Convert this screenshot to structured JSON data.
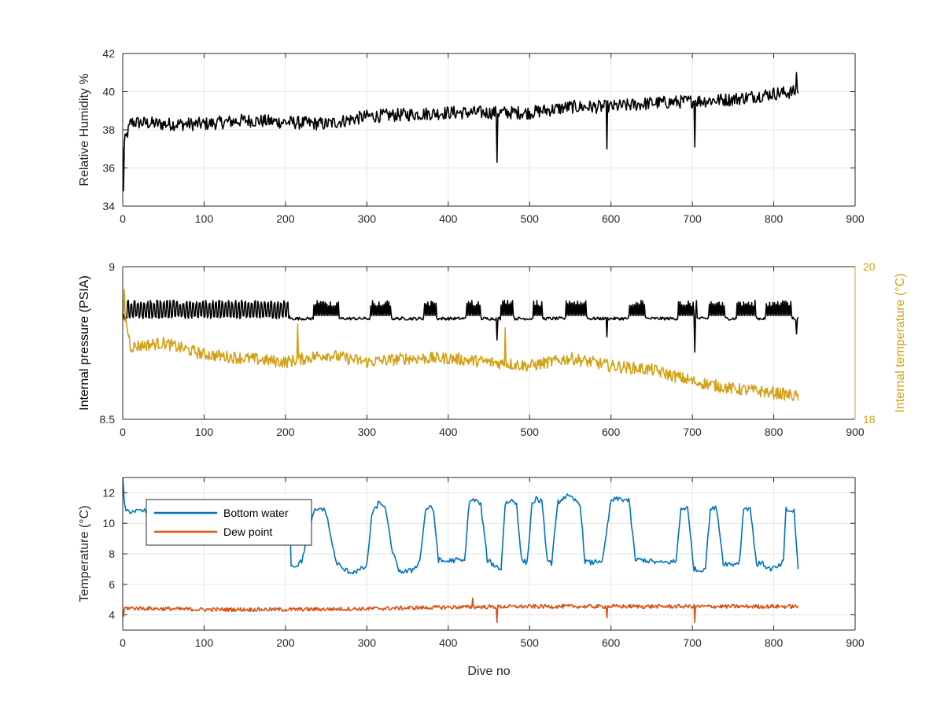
{
  "chart_data": [
    {
      "type": "line",
      "panel": "humidity",
      "xlabel": "",
      "ylabel": "Relative Humidity %",
      "xlim": [
        0,
        900
      ],
      "ylim": [
        34,
        42
      ],
      "xticks": [
        "0",
        "100",
        "200",
        "300",
        "400",
        "500",
        "600",
        "700",
        "800",
        "900"
      ],
      "yticks": [
        "34",
        "36",
        "38",
        "40",
        "42"
      ],
      "grid": true,
      "series": [
        {
          "color": "#000000",
          "baseline_x": [
            0,
            10,
            50,
            100,
            150,
            200,
            250,
            300,
            350,
            400,
            450,
            500,
            550,
            600,
            650,
            700,
            750,
            800,
            830
          ],
          "baseline_y": [
            37.0,
            38.4,
            38.3,
            38.3,
            38.5,
            38.4,
            38.3,
            38.7,
            38.8,
            38.9,
            38.9,
            38.9,
            39.2,
            39.2,
            39.4,
            39.5,
            39.6,
            39.9,
            40.0
          ],
          "noise": 0.35,
          "spikes": [
            {
              "x": 1,
              "y": 34.8
            },
            {
              "x": 460,
              "y": 36.3
            },
            {
              "x": 595,
              "y": 37.0
            },
            {
              "x": 703,
              "y": 37.1
            },
            {
              "x": 828,
              "y": 41.0
            }
          ]
        }
      ]
    },
    {
      "type": "line",
      "panel": "pressure-temperature",
      "xlabel": "",
      "ylabel": "Internal pressure (PSIA)",
      "ylabel_right": "Internal temperature (°C)",
      "xlim": [
        0,
        900
      ],
      "ylim": [
        8.5,
        9
      ],
      "ylim_right": [
        18,
        20
      ],
      "xticks": [
        "0",
        "100",
        "200",
        "300",
        "400",
        "500",
        "600",
        "700",
        "800",
        "900"
      ],
      "yticks": [
        "8.5",
        "9"
      ],
      "yticks_right": [
        "18",
        "20"
      ],
      "right_axis_color": "#D4A017",
      "grid": true,
      "series": [
        {
          "axis": "left",
          "color": "#000000",
          "baseline": 8.83,
          "early_oscillation": {
            "x0": 5,
            "x1": 205,
            "low": 8.83,
            "high": 8.89
          },
          "plateau_top": 8.89,
          "plateaus": [
            [
              235,
              265
            ],
            [
              305,
              330
            ],
            [
              370,
              385
            ],
            [
              422,
              440
            ],
            [
              465,
              480
            ],
            [
              505,
              515
            ],
            [
              545,
              570
            ],
            [
              622,
              642
            ],
            [
              683,
              705
            ],
            [
              720,
              740
            ],
            [
              755,
              778
            ],
            [
              790,
              822
            ]
          ],
          "spikes": [
            {
              "x": 1,
              "y": 8.84
            },
            {
              "x": 460,
              "y": 8.76
            },
            {
              "x": 595,
              "y": 8.77
            },
            {
              "x": 703,
              "y": 8.72
            },
            {
              "x": 828,
              "y": 8.78
            }
          ]
        },
        {
          "axis": "right",
          "color": "#D4A017",
          "baseline_x": [
            0,
            10,
            50,
            100,
            150,
            200,
            250,
            300,
            350,
            400,
            450,
            500,
            550,
            600,
            650,
            700,
            750,
            800,
            830
          ],
          "baseline_y": [
            19.5,
            18.95,
            19.0,
            18.85,
            18.8,
            18.75,
            18.85,
            18.75,
            18.8,
            18.8,
            18.75,
            18.7,
            18.8,
            18.7,
            18.65,
            18.5,
            18.4,
            18.35,
            18.3
          ],
          "noise": 0.08,
          "spikes": [
            {
              "x": 2,
              "y": 19.7
            },
            {
              "x": 215,
              "y": 19.25
            },
            {
              "x": 470,
              "y": 19.2
            },
            {
              "x": 705,
              "y": 18.45
            },
            {
              "x": 795,
              "y": 18.35
            }
          ]
        }
      ]
    },
    {
      "type": "line",
      "panel": "bottom-temperatures",
      "xlabel": "Dive no",
      "ylabel": "Temperature (°C)",
      "xlim": [
        0,
        900
      ],
      "ylim": [
        3,
        13
      ],
      "xticks": [
        "0",
        "100",
        "200",
        "300",
        "400",
        "500",
        "600",
        "700",
        "800",
        "900"
      ],
      "yticks": [
        "4",
        "6",
        "8",
        "10",
        "12"
      ],
      "grid": true,
      "legend": {
        "position": "top-left",
        "entries": [
          {
            "name": "Bottom water",
            "color": "#0072BD"
          },
          {
            "name": "Dew point",
            "color": "#D95319"
          }
        ]
      },
      "series": [
        {
          "name": "Bottom water",
          "color": "#0072BD",
          "x": [
            0,
            2,
            4,
            6,
            30,
            205,
            207,
            212,
            220,
            228,
            236,
            244,
            250,
            258,
            262,
            270,
            280,
            290,
            300,
            306,
            314,
            322,
            330,
            338,
            345,
            355,
            365,
            372,
            376,
            382,
            388,
            395,
            410,
            420,
            426,
            434,
            440,
            448,
            458,
            465,
            470,
            478,
            484,
            490,
            497,
            503,
            508,
            515,
            522,
            527,
            535,
            545,
            552,
            562,
            568,
            575,
            590,
            600,
            610,
            622,
            630,
            640,
            660,
            680,
            686,
            694,
            702,
            708,
            716,
            722,
            730,
            738,
            750,
            758,
            763,
            771,
            779,
            785,
            795,
            805,
            812,
            815,
            820,
            825,
            830
          ],
          "y": [
            13.0,
            11.2,
            10.8,
            10.8,
            10.8,
            10.8,
            7.3,
            7.2,
            7.5,
            9.5,
            10.8,
            11.0,
            10.7,
            8.5,
            7.5,
            7.0,
            6.8,
            6.9,
            7.2,
            10.5,
            11.3,
            11.2,
            8.5,
            7.0,
            6.8,
            6.9,
            7.5,
            10.8,
            11.1,
            10.8,
            7.6,
            7.5,
            7.6,
            7.5,
            11.5,
            11.5,
            11.2,
            7.6,
            7.2,
            7.0,
            11.3,
            11.5,
            11.3,
            7.6,
            7.4,
            11.3,
            11.6,
            11.4,
            7.5,
            7.4,
            11.4,
            11.8,
            11.6,
            11.3,
            7.5,
            7.4,
            7.6,
            11.5,
            11.6,
            11.5,
            7.6,
            7.6,
            7.4,
            7.5,
            11.0,
            11.0,
            7.0,
            6.9,
            7.1,
            10.9,
            11.0,
            7.4,
            7.3,
            7.5,
            11.0,
            11.0,
            7.3,
            7.4,
            7.0,
            7.1,
            7.5,
            10.9,
            10.8,
            10.8,
            7.0
          ]
        },
        {
          "name": "Dew point",
          "color": "#D95319",
          "baseline_x": [
            0,
            100,
            200,
            300,
            400,
            500,
            600,
            700,
            800,
            830
          ],
          "baseline_y": [
            4.45,
            4.35,
            4.35,
            4.4,
            4.5,
            4.55,
            4.55,
            4.55,
            4.55,
            4.55
          ],
          "noise": 0.13,
          "spikes": [
            {
              "x": 1,
              "y": 3.9
            },
            {
              "x": 430,
              "y": 5.1
            },
            {
              "x": 460,
              "y": 3.5
            },
            {
              "x": 595,
              "y": 3.8
            },
            {
              "x": 703,
              "y": 3.5
            }
          ]
        }
      ]
    }
  ]
}
